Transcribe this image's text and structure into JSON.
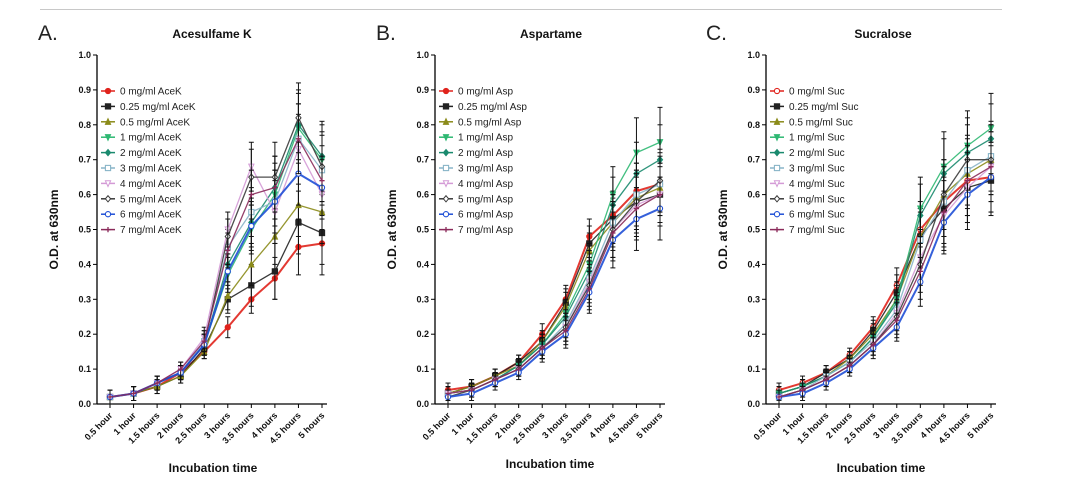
{
  "figure": {
    "rule_color": "#c8c8c8"
  },
  "chart_data": [
    {
      "type": "line",
      "panel_letter": "A.",
      "title": "Acesulfame K",
      "xlabel": "Incubation time",
      "ylabel": "O.D. at 630nm",
      "ylim": [
        0,
        1.0
      ],
      "yticks": [
        "0.0",
        "0.1",
        "0.2",
        "0.3",
        "0.4",
        "0.5",
        "0.6",
        "0.7",
        "0.8",
        "0.9",
        "1.0"
      ],
      "categories": [
        "0.5 hour",
        "1 hour",
        "1.5 hours",
        "2 hours",
        "2.5 hours",
        "3 hours",
        "3.5 hours",
        "4 hours",
        "4.5 hours",
        "5 hours"
      ],
      "legend_position": "top-left",
      "series": [
        {
          "name": "0 mg/ml AceK",
          "color": "#e0231c",
          "marker": "o",
          "values": [
            0.02,
            0.03,
            0.05,
            0.09,
            0.15,
            0.22,
            0.3,
            0.36,
            0.45,
            0.46
          ],
          "error": [
            0.02,
            0.02,
            0.02,
            0.02,
            0.02,
            0.03,
            0.04,
            0.06,
            0.08,
            0.09
          ]
        },
        {
          "name": "0.25 mg/ml AceK",
          "color": "#222222",
          "marker": "s",
          "values": [
            0.02,
            0.03,
            0.05,
            0.08,
            0.16,
            0.3,
            0.34,
            0.38,
            0.52,
            0.49
          ],
          "error": [
            0.02,
            0.02,
            0.02,
            0.02,
            0.02,
            0.04,
            0.06,
            0.08,
            0.09,
            0.09
          ]
        },
        {
          "name": "0.5 mg/ml AceK",
          "color": "#8b8b1a",
          "marker": "^",
          "values": [
            0.02,
            0.03,
            0.05,
            0.08,
            0.15,
            0.31,
            0.4,
            0.48,
            0.57,
            0.55
          ],
          "error": [
            0.02,
            0.02,
            0.02,
            0.02,
            0.02,
            0.04,
            0.06,
            0.08,
            0.09,
            0.09
          ]
        },
        {
          "name": "1 mg/ml AceK",
          "color": "#2eb872",
          "marker": "v",
          "values": [
            0.02,
            0.03,
            0.06,
            0.09,
            0.17,
            0.37,
            0.5,
            0.6,
            0.79,
            0.7
          ],
          "error": [
            0.02,
            0.02,
            0.02,
            0.02,
            0.03,
            0.05,
            0.07,
            0.09,
            0.1,
            0.1
          ]
        },
        {
          "name": "2 mg/ml AceK",
          "color": "#1a8a6e",
          "marker": "d",
          "values": [
            0.02,
            0.03,
            0.06,
            0.09,
            0.17,
            0.4,
            0.52,
            0.62,
            0.8,
            0.71
          ],
          "error": [
            0.02,
            0.02,
            0.02,
            0.02,
            0.03,
            0.05,
            0.07,
            0.09,
            0.1,
            0.1
          ]
        },
        {
          "name": "3 mg/ml AceK",
          "color": "#88b4c8",
          "marker": "s-open",
          "values": [
            0.02,
            0.03,
            0.06,
            0.09,
            0.18,
            0.45,
            0.55,
            0.58,
            0.76,
            0.67
          ],
          "error": [
            0.02,
            0.02,
            0.02,
            0.02,
            0.03,
            0.05,
            0.07,
            0.09,
            0.1,
            0.1
          ]
        },
        {
          "name": "4 mg/ml AceK",
          "color": "#d49ad6",
          "marker": "v-open",
          "values": [
            0.02,
            0.03,
            0.06,
            0.1,
            0.19,
            0.5,
            0.68,
            0.55,
            0.73,
            0.6
          ],
          "error": [
            0.02,
            0.02,
            0.02,
            0.02,
            0.03,
            0.05,
            0.07,
            0.09,
            0.1,
            0.1
          ]
        },
        {
          "name": "5 mg/ml AceK",
          "color": "#3a3a3a",
          "marker": "d-open",
          "values": [
            0.02,
            0.03,
            0.06,
            0.09,
            0.17,
            0.48,
            0.65,
            0.65,
            0.82,
            0.68
          ],
          "error": [
            0.02,
            0.02,
            0.02,
            0.02,
            0.03,
            0.05,
            0.08,
            0.1,
            0.1,
            0.1
          ]
        },
        {
          "name": "6 mg/ml AceK",
          "color": "#1f4fd6",
          "marker": "o-open",
          "values": [
            0.02,
            0.03,
            0.06,
            0.09,
            0.17,
            0.38,
            0.51,
            0.58,
            0.66,
            0.62
          ],
          "error": [
            0.02,
            0.02,
            0.02,
            0.02,
            0.03,
            0.05,
            0.07,
            0.09,
            0.09,
            0.09
          ]
        },
        {
          "name": "7 mg/ml AceK",
          "color": "#8a2a5a",
          "marker": "+",
          "values": [
            0.02,
            0.03,
            0.06,
            0.1,
            0.18,
            0.44,
            0.6,
            0.62,
            0.76,
            0.64
          ],
          "error": [
            0.02,
            0.02,
            0.02,
            0.02,
            0.03,
            0.05,
            0.07,
            0.09,
            0.1,
            0.1
          ]
        }
      ]
    },
    {
      "type": "line",
      "panel_letter": "B.",
      "title": "Aspartame",
      "xlabel": "Incubation time",
      "ylabel": "O.D. at 630nm",
      "ylim": [
        0,
        1.0
      ],
      "yticks": [
        "0.0",
        "0.1",
        "0.2",
        "0.3",
        "0.4",
        "0.5",
        "0.6",
        "0.7",
        "0.8",
        "0.9",
        "1.0"
      ],
      "categories": [
        "0.5 hour",
        "1 hour",
        "1.5 hours",
        "2 hours",
        "2.5 hours",
        "3 hours",
        "3.5 hours",
        "4 hours",
        "4.5 hours",
        "5 hours"
      ],
      "legend_position": "top-left",
      "series": [
        {
          "name": "0 mg/ml Asp",
          "color": "#e0231c",
          "marker": "o",
          "values": [
            0.04,
            0.05,
            0.08,
            0.12,
            0.2,
            0.3,
            0.48,
            0.54,
            0.61,
            0.63
          ],
          "error": [
            0.02,
            0.02,
            0.02,
            0.02,
            0.03,
            0.04,
            0.05,
            0.07,
            0.08,
            0.08
          ]
        },
        {
          "name": "0.25 mg/ml Asp",
          "color": "#222222",
          "marker": "s",
          "values": [
            0.03,
            0.05,
            0.08,
            0.12,
            0.18,
            0.29,
            0.46,
            0.53,
            0.58,
            0.6
          ],
          "error": [
            0.02,
            0.02,
            0.02,
            0.02,
            0.03,
            0.04,
            0.05,
            0.07,
            0.08,
            0.08
          ]
        },
        {
          "name": "0.5 mg/ml Asp",
          "color": "#8b8b1a",
          "marker": "^",
          "values": [
            0.03,
            0.05,
            0.08,
            0.11,
            0.18,
            0.28,
            0.44,
            0.52,
            0.59,
            0.62
          ],
          "error": [
            0.02,
            0.02,
            0.02,
            0.02,
            0.03,
            0.04,
            0.05,
            0.07,
            0.08,
            0.08
          ]
        },
        {
          "name": "1 mg/ml Asp",
          "color": "#2eb872",
          "marker": "v",
          "values": [
            0.03,
            0.04,
            0.07,
            0.11,
            0.17,
            0.26,
            0.4,
            0.6,
            0.72,
            0.75
          ],
          "error": [
            0.02,
            0.02,
            0.02,
            0.02,
            0.03,
            0.04,
            0.06,
            0.08,
            0.1,
            0.1
          ]
        },
        {
          "name": "2 mg/ml Asp",
          "color": "#1a8a6e",
          "marker": "d",
          "values": [
            0.03,
            0.04,
            0.07,
            0.11,
            0.17,
            0.25,
            0.38,
            0.57,
            0.66,
            0.7
          ],
          "error": [
            0.02,
            0.02,
            0.02,
            0.02,
            0.03,
            0.04,
            0.06,
            0.08,
            0.09,
            0.1
          ]
        },
        {
          "name": "3 mg/ml Asp",
          "color": "#88b4c8",
          "marker": "s-open",
          "values": [
            0.03,
            0.04,
            0.07,
            0.1,
            0.16,
            0.23,
            0.36,
            0.52,
            0.6,
            0.63
          ],
          "error": [
            0.02,
            0.02,
            0.02,
            0.02,
            0.03,
            0.04,
            0.06,
            0.08,
            0.09,
            0.09
          ]
        },
        {
          "name": "4 mg/ml Asp",
          "color": "#d49ad6",
          "marker": "v-open",
          "values": [
            0.03,
            0.04,
            0.07,
            0.1,
            0.16,
            0.22,
            0.35,
            0.5,
            0.57,
            0.6
          ],
          "error": [
            0.02,
            0.02,
            0.02,
            0.02,
            0.03,
            0.04,
            0.06,
            0.08,
            0.09,
            0.09
          ]
        },
        {
          "name": "5 mg/ml Asp",
          "color": "#3a3a3a",
          "marker": "d-open",
          "values": [
            0.02,
            0.04,
            0.07,
            0.1,
            0.16,
            0.22,
            0.34,
            0.5,
            0.58,
            0.64
          ],
          "error": [
            0.02,
            0.02,
            0.02,
            0.02,
            0.03,
            0.04,
            0.06,
            0.08,
            0.09,
            0.09
          ]
        },
        {
          "name": "6 mg/ml Asp",
          "color": "#1f4fd6",
          "marker": "o-open",
          "values": [
            0.02,
            0.03,
            0.06,
            0.09,
            0.15,
            0.2,
            0.32,
            0.47,
            0.53,
            0.56
          ],
          "error": [
            0.02,
            0.02,
            0.02,
            0.02,
            0.03,
            0.04,
            0.06,
            0.08,
            0.09,
            0.09
          ]
        },
        {
          "name": "7 mg/ml Asp",
          "color": "#8a2a5a",
          "marker": "+",
          "values": [
            0.03,
            0.04,
            0.07,
            0.1,
            0.16,
            0.21,
            0.33,
            0.49,
            0.56,
            0.6
          ],
          "error": [
            0.02,
            0.02,
            0.02,
            0.02,
            0.03,
            0.04,
            0.06,
            0.08,
            0.09,
            0.09
          ]
        }
      ]
    },
    {
      "type": "line",
      "panel_letter": "C.",
      "title": "Sucralose",
      "xlabel": "Incubation time",
      "ylabel": "O.D. at 630nm",
      "ylim": [
        0,
        1.0
      ],
      "yticks": [
        "0.0",
        "0.1",
        "0.2",
        "0.3",
        "0.4",
        "0.5",
        "0.6",
        "0.7",
        "0.8",
        "0.9",
        "1.0"
      ],
      "categories": [
        "0.5 hour",
        "1 hour",
        "1.5 hours",
        "2 hours",
        "2.5 hours",
        "3 hours",
        "3.5 hours",
        "4 hours",
        "4.5 hours",
        "5 hours"
      ],
      "legend_position": "top-left",
      "series": [
        {
          "name": "0 mg/ml Suc",
          "color": "#e0231c",
          "marker": "o-open",
          "values": [
            0.04,
            0.06,
            0.09,
            0.14,
            0.22,
            0.34,
            0.5,
            0.58,
            0.64,
            0.65
          ],
          "error": [
            0.02,
            0.02,
            0.02,
            0.02,
            0.03,
            0.05,
            0.08,
            0.1,
            0.1,
            0.1
          ]
        },
        {
          "name": "0.25 mg/ml Suc",
          "color": "#222222",
          "marker": "s",
          "values": [
            0.03,
            0.05,
            0.09,
            0.13,
            0.21,
            0.32,
            0.48,
            0.56,
            0.62,
            0.64
          ],
          "error": [
            0.02,
            0.02,
            0.02,
            0.02,
            0.03,
            0.05,
            0.08,
            0.1,
            0.1,
            0.1
          ]
        },
        {
          "name": "0.5 mg/ml Suc",
          "color": "#8b8b1a",
          "marker": "^",
          "values": [
            0.03,
            0.05,
            0.08,
            0.13,
            0.2,
            0.3,
            0.48,
            0.6,
            0.66,
            0.7
          ],
          "error": [
            0.02,
            0.02,
            0.02,
            0.02,
            0.03,
            0.05,
            0.08,
            0.1,
            0.1,
            0.1
          ]
        },
        {
          "name": "1 mg/ml Suc",
          "color": "#2eb872",
          "marker": "v",
          "values": [
            0.03,
            0.05,
            0.08,
            0.12,
            0.19,
            0.3,
            0.56,
            0.68,
            0.74,
            0.79
          ],
          "error": [
            0.02,
            0.02,
            0.02,
            0.02,
            0.03,
            0.05,
            0.09,
            0.1,
            0.1,
            0.1
          ]
        },
        {
          "name": "2 mg/ml Suc",
          "color": "#1a8a6e",
          "marker": "d",
          "values": [
            0.03,
            0.05,
            0.08,
            0.12,
            0.19,
            0.29,
            0.54,
            0.66,
            0.72,
            0.76
          ],
          "error": [
            0.02,
            0.02,
            0.02,
            0.02,
            0.03,
            0.05,
            0.09,
            0.1,
            0.1,
            0.1
          ]
        },
        {
          "name": "3 mg/ml Suc",
          "color": "#88b4c8",
          "marker": "s-open",
          "values": [
            0.02,
            0.04,
            0.08,
            0.12,
            0.18,
            0.27,
            0.47,
            0.58,
            0.67,
            0.71
          ],
          "error": [
            0.02,
            0.02,
            0.02,
            0.02,
            0.03,
            0.05,
            0.08,
            0.1,
            0.1,
            0.1
          ]
        },
        {
          "name": "4 mg/ml Suc",
          "color": "#d49ad6",
          "marker": "v-open",
          "values": [
            0.02,
            0.04,
            0.07,
            0.11,
            0.17,
            0.26,
            0.42,
            0.54,
            0.62,
            0.68
          ],
          "error": [
            0.02,
            0.02,
            0.02,
            0.02,
            0.03,
            0.05,
            0.08,
            0.1,
            0.1,
            0.1
          ]
        },
        {
          "name": "5 mg/ml Suc",
          "color": "#3a3a3a",
          "marker": "d-open",
          "values": [
            0.02,
            0.04,
            0.07,
            0.11,
            0.17,
            0.25,
            0.4,
            0.6,
            0.7,
            0.7
          ],
          "error": [
            0.02,
            0.02,
            0.02,
            0.02,
            0.03,
            0.05,
            0.08,
            0.1,
            0.1,
            0.1
          ]
        },
        {
          "name": "6 mg/ml Suc",
          "color": "#1f4fd6",
          "marker": "o-open",
          "values": [
            0.02,
            0.03,
            0.06,
            0.1,
            0.16,
            0.22,
            0.35,
            0.52,
            0.6,
            0.65
          ],
          "error": [
            0.02,
            0.02,
            0.02,
            0.02,
            0.03,
            0.04,
            0.07,
            0.09,
            0.1,
            0.1
          ]
        },
        {
          "name": "7 mg/ml Suc",
          "color": "#8a2a5a",
          "marker": "+",
          "values": [
            0.02,
            0.04,
            0.07,
            0.11,
            0.17,
            0.24,
            0.38,
            0.55,
            0.64,
            0.68
          ],
          "error": [
            0.02,
            0.02,
            0.02,
            0.02,
            0.03,
            0.05,
            0.08,
            0.1,
            0.1,
            0.1
          ]
        }
      ]
    }
  ]
}
